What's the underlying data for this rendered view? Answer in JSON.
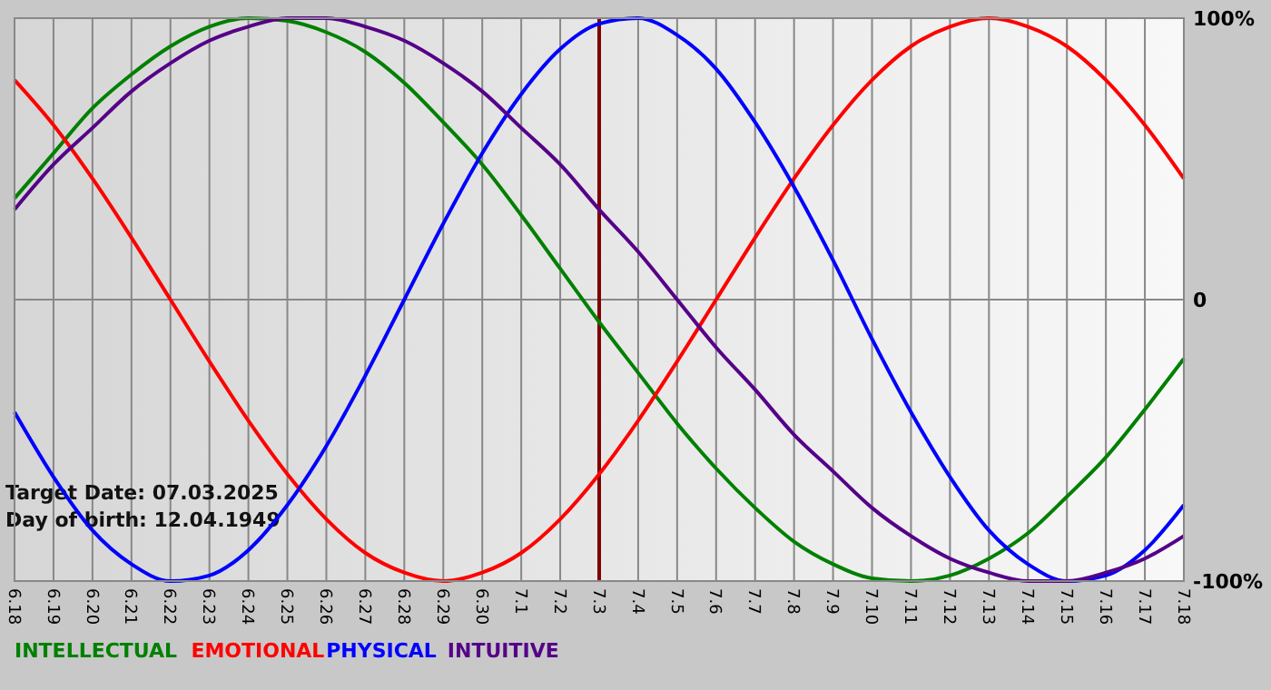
{
  "chart_data": {
    "type": "line",
    "categories": [
      "6.18",
      "6.19",
      "6.20",
      "6.21",
      "6.22",
      "6.23",
      "6.24",
      "6.25",
      "6.26",
      "6.27",
      "6.28",
      "6.29",
      "6.30",
      "7.1",
      "7.2",
      "7.3",
      "7.4",
      "7.5",
      "7.6",
      "7.7",
      "7.8",
      "7.9",
      "7.10",
      "7.11",
      "7.12",
      "7.13",
      "7.14",
      "7.15",
      "7.16",
      "7.17",
      "7.18"
    ],
    "series": [
      {
        "name": "INTELLECTUAL",
        "color": "#008000",
        "values": [
          36,
          52,
          68,
          80,
          90,
          97,
          100,
          99,
          95,
          88,
          77,
          63,
          48,
          30,
          11,
          -8,
          -26,
          -44,
          -60,
          -74,
          -86,
          -94,
          -99,
          -100,
          -98,
          -92,
          -83,
          -70,
          -56,
          -39,
          -21
        ]
      },
      {
        "name": "EMOTIONAL",
        "color": "#ff0000",
        "values": [
          78,
          62,
          43,
          22,
          0,
          -22,
          -43,
          -62,
          -78,
          -90,
          -97,
          -100,
          -97,
          -90,
          -78,
          -62,
          -43,
          -22,
          0,
          22,
          43,
          62,
          78,
          90,
          97,
          100,
          97,
          90,
          78,
          62,
          43
        ]
      },
      {
        "name": "PHYSICAL",
        "color": "#0000ff",
        "values": [
          -40,
          -63,
          -82,
          -94,
          -100,
          -98,
          -89,
          -73,
          -52,
          -27,
          0,
          27,
          52,
          73,
          89,
          98,
          100,
          94,
          82,
          63,
          40,
          14,
          -14,
          -40,
          -63,
          -82,
          -94,
          -100,
          -98,
          -89,
          -73
        ]
      },
      {
        "name": "INTUITIVE",
        "color": "#550088",
        "values": [
          32,
          48,
          61,
          74,
          84,
          92,
          97,
          100,
          100,
          97,
          92,
          84,
          74,
          61,
          48,
          32,
          17,
          0,
          -17,
          -32,
          -48,
          -61,
          -74,
          -84,
          -92,
          -97,
          -100,
          -100,
          -97,
          -92,
          -84
        ]
      }
    ],
    "ylim": [
      -100,
      100
    ],
    "yticks": [
      {
        "value": 100,
        "label": "100%"
      },
      0,
      {
        "value": -100,
        "label": "-100%"
      }
    ],
    "grid": true,
    "legend": "bottom left",
    "marker": "none",
    "line_style": "solid",
    "ref_lines": [
      {
        "axis": "x",
        "value": "7.3",
        "color": "#800000"
      }
    ],
    "annotations": [
      "Target Date: 07.03.2025",
      "Day of birth: 12.04.1949"
    ]
  }
}
